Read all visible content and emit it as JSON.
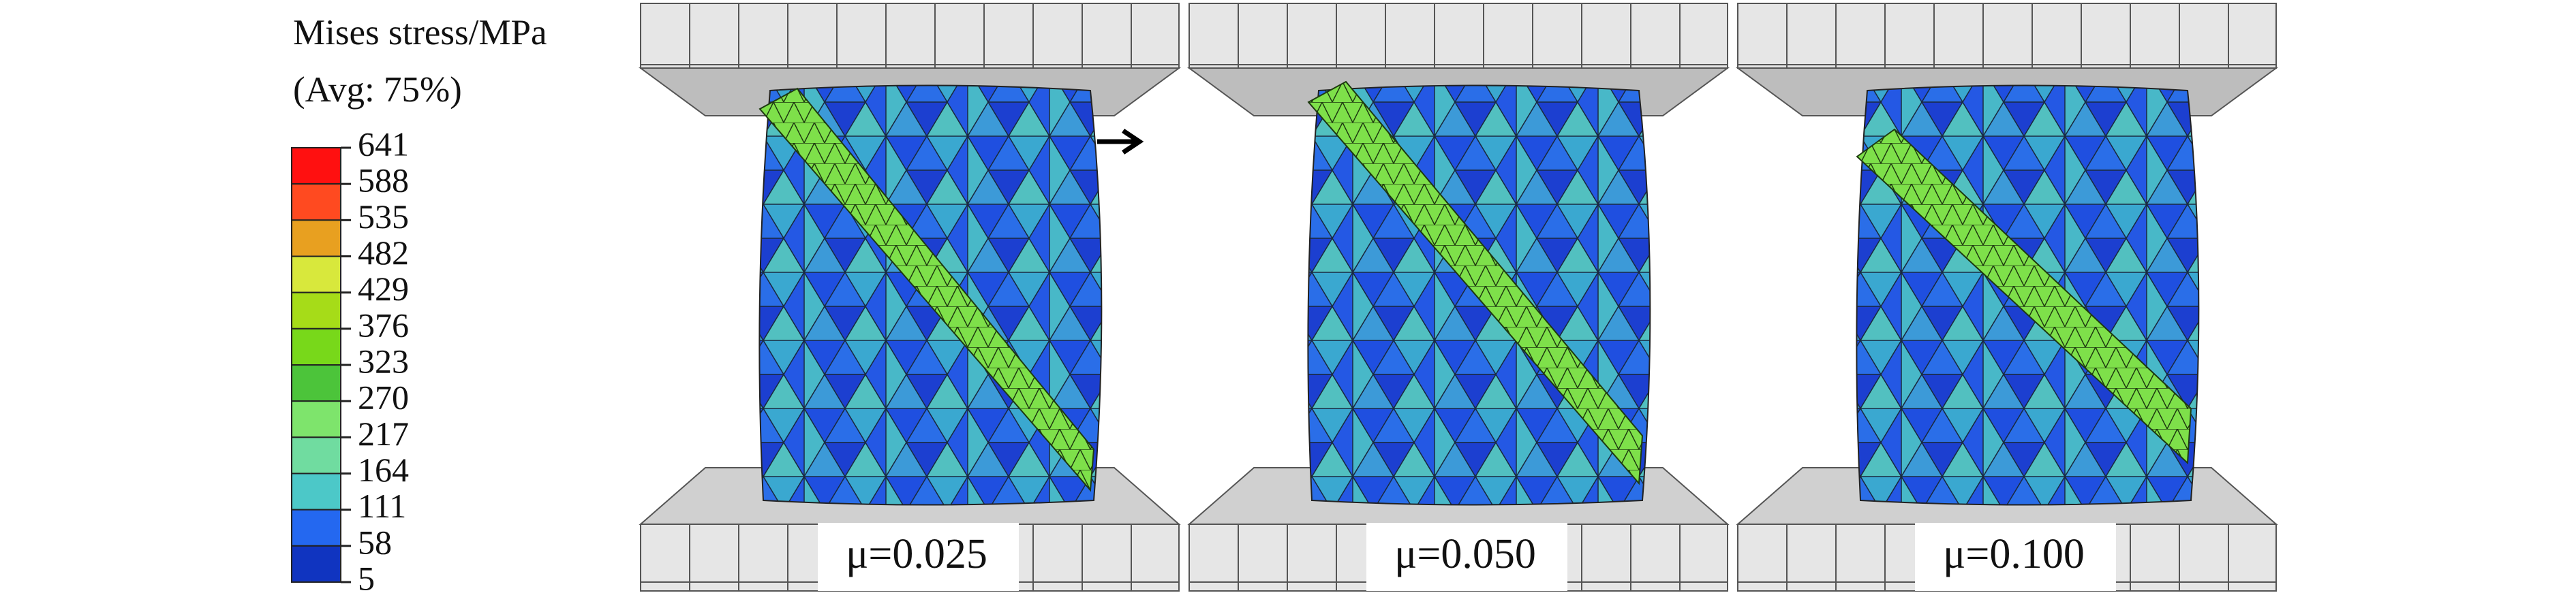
{
  "legend": {
    "title": "Mises stress/MPa",
    "subtitle": "(Avg: 75%)",
    "ticks": [
      641,
      588,
      535,
      482,
      429,
      376,
      323,
      270,
      217,
      164,
      111,
      58,
      5
    ],
    "colors": [
      "#ff1010",
      "#ff4a20",
      "#e8a020",
      "#d8e83c",
      "#a6dc18",
      "#78d81a",
      "#4cc43a",
      "#7ee46c",
      "#70dca0",
      "#4cc8c8",
      "#2468f0",
      "#1034c0"
    ]
  },
  "panels": [
    {
      "label": "μ=0.025"
    },
    {
      "label": "μ=0.050"
    },
    {
      "label": "μ=0.100"
    }
  ]
}
